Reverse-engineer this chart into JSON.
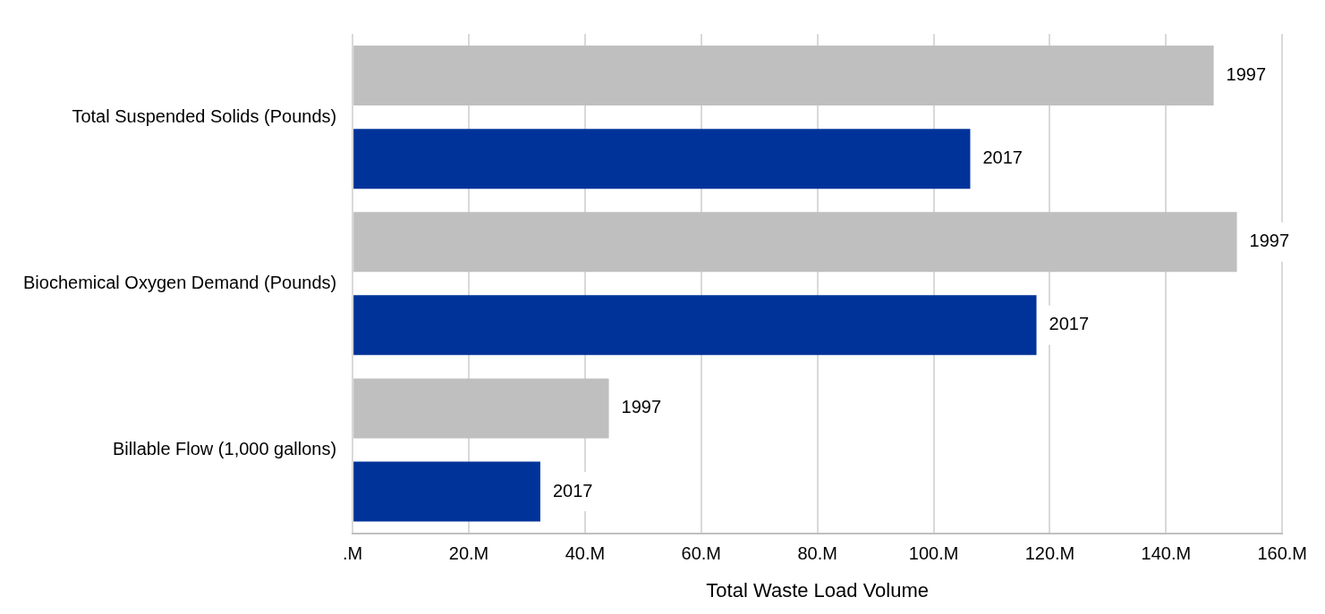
{
  "chart_data": {
    "type": "bar",
    "orientation": "horizontal",
    "xlabel": "Total Waste Load Volume",
    "categories": [
      "Total Suspended Solids (Pounds)",
      "Biochemical Oxygen Demand (Pounds)",
      "Billable Flow (1,000 gallons)"
    ],
    "series": [
      {
        "name": "1997",
        "color": "#bfbfbf",
        "values": [
          148.2,
          152.2,
          44.1
        ]
      },
      {
        "name": "2017",
        "color": "#003399",
        "values": [
          106.3,
          117.7,
          32.3
        ]
      }
    ],
    "xlim": [
      0,
      160
    ],
    "xticks": [
      {
        "value": 0,
        "label": ".M"
      },
      {
        "value": 20,
        "label": "20.M"
      },
      {
        "value": 40,
        "label": "40.M"
      },
      {
        "value": 60,
        "label": "60.M"
      },
      {
        "value": 80,
        "label": "80.M"
      },
      {
        "value": 100,
        "label": "100.M"
      },
      {
        "value": 120,
        "label": "120.M"
      },
      {
        "value": 140,
        "label": "140.M"
      },
      {
        "value": 160,
        "label": "160.M"
      }
    ],
    "grid": "x",
    "legend": false
  }
}
